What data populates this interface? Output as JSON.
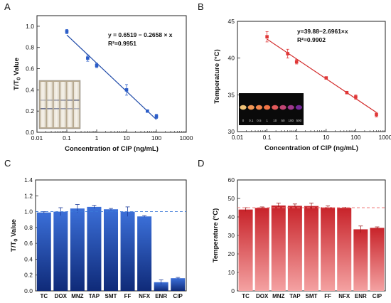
{
  "panels": {
    "A": {
      "letter": "A",
      "eq": "y = 0.6519 − 0.2658 × x",
      "r2": "R²=0.9951"
    },
    "B": {
      "letter": "B",
      "eq": "y=39.88−2.6961×x",
      "r2": "R²=0.9902"
    },
    "C": {
      "letter": "C"
    },
    "D": {
      "letter": "D"
    }
  },
  "inset_b_labels": [
    "0",
    "0.1",
    "0.5",
    "1",
    "10",
    "50",
    "100",
    "500"
  ],
  "colors": {
    "blue_series": "#2a5cc8",
    "blue_fit": "#1f4aa8",
    "red_series": "#e03838",
    "red_fit": "#d22a2a",
    "dash_blue": "#3a78d8",
    "dash_red": "#f07878"
  },
  "chart_data": [
    {
      "type": "scatter",
      "panel": "A",
      "xlabel": "Concentration of CIP (ng/mL)",
      "ylabel": "T/T₀ Value",
      "xscale": "log",
      "xlim": [
        0.01,
        1000
      ],
      "ylim": [
        0.0,
        1.1
      ],
      "xticks": [
        "0.01",
        "0.1",
        "1",
        "10",
        "100",
        "1000"
      ],
      "yticks": [
        "0.0",
        "0.2",
        "0.4",
        "0.6",
        "0.8",
        "1.0"
      ],
      "x": [
        0.1,
        0.5,
        1,
        10,
        50,
        100
      ],
      "y": [
        0.95,
        0.7,
        0.63,
        0.4,
        0.2,
        0.15
      ],
      "error": [
        0.02,
        0.03,
        0.02,
        0.05,
        0.01,
        0.02
      ],
      "fit": {
        "intercept": 0.6519,
        "slope": -0.2658,
        "x_range": [
          0.1,
          100
        ]
      }
    },
    {
      "type": "scatter",
      "panel": "B",
      "xlabel": "Concentration of CIP (ng/mL)",
      "ylabel": "Temperature (°C)",
      "xscale": "log",
      "xlim": [
        0.01,
        1000
      ],
      "ylim": [
        30,
        45
      ],
      "xticks": [
        "0.01",
        "0.1",
        "1",
        "10",
        "100",
        "1000"
      ],
      "yticks": [
        "30",
        "35",
        "40",
        "45"
      ],
      "x": [
        0.1,
        0.5,
        1,
        10,
        50,
        100,
        500
      ],
      "y": [
        42.9,
        40.6,
        39.5,
        37.3,
        35.3,
        34.7,
        32.3
      ],
      "error": [
        0.7,
        0.6,
        0.3,
        0.15,
        0.15,
        0.3,
        0.3
      ],
      "fit": {
        "intercept": 39.88,
        "slope": -2.6961,
        "x_range": [
          0.1,
          500
        ]
      }
    },
    {
      "type": "bar",
      "panel": "C",
      "ylabel": "T/T₀ Value",
      "categories": [
        "TC",
        "DOX",
        "MNZ",
        "TAP",
        "SMT",
        "FF",
        "NFX",
        "ENR",
        "CIP"
      ],
      "values": [
        0.99,
        1.0,
        1.04,
        1.06,
        1.03,
        1.0,
        0.94,
        0.11,
        0.16
      ],
      "error": [
        0.01,
        0.05,
        0.05,
        0.02,
        0.01,
        0.06,
        0.01,
        0.03,
        0.01
      ],
      "ylim": [
        0.0,
        1.4
      ],
      "yticks": [
        "0.0",
        "0.2",
        "0.4",
        "0.6",
        "0.8",
        "1.0",
        "1.2",
        "1.4"
      ],
      "reference_line": 1.0
    },
    {
      "type": "bar",
      "panel": "D",
      "ylabel": "Temperature (°C)",
      "categories": [
        "TC",
        "DOX",
        "MNZ",
        "TAP",
        "SMT",
        "FF",
        "NFX",
        "ENR",
        "CIP"
      ],
      "values": [
        44.0,
        44.9,
        46.2,
        46.0,
        45.9,
        45.2,
        44.9,
        33.3,
        34.1
      ],
      "error": [
        1.0,
        0.5,
        1.3,
        1.0,
        1.6,
        0.8,
        0.2,
        1.8,
        0.5
      ],
      "ylim": [
        0,
        60
      ],
      "yticks": [
        "0",
        "10",
        "20",
        "30",
        "40",
        "50",
        "60"
      ],
      "reference_line": 45
    }
  ]
}
